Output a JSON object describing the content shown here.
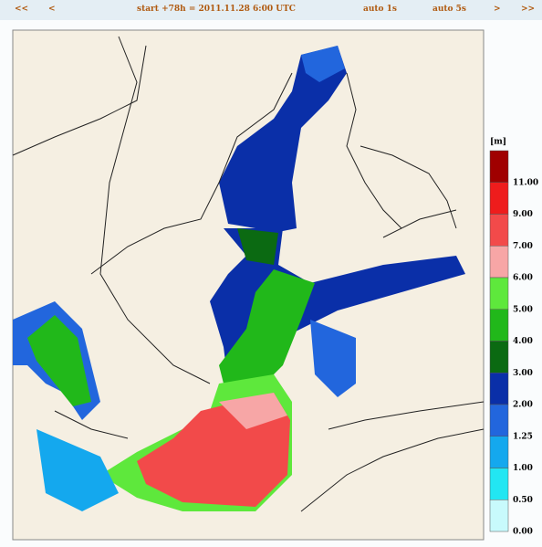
{
  "nav": {
    "first": "<<",
    "prev": "<",
    "title": "start +78h  =  2011.11.28 6:00 UTC",
    "auto1": "auto 1s",
    "auto5": "auto 5s",
    "next": ">",
    "last": ">>"
  },
  "legend": {
    "unit": "[m]",
    "levels": [
      {
        "label": "11.00",
        "color": "#a00000"
      },
      {
        "label": "9.00",
        "color": "#ee1c1c"
      },
      {
        "label": "7.00",
        "color": "#f24a4a"
      },
      {
        "label": "6.00",
        "color": "#f7a6a6"
      },
      {
        "label": "5.00",
        "color": "#5ee83c"
      },
      {
        "label": "4.00",
        "color": "#21b81a"
      },
      {
        "label": "3.00",
        "color": "#0b6a12"
      },
      {
        "label": "2.00",
        "color": "#0a2fa8"
      },
      {
        "label": "1.25",
        "color": "#2266dd"
      },
      {
        "label": "1.00",
        "color": "#14a8ee"
      },
      {
        "label": "0.50",
        "color": "#22e6f2"
      },
      {
        "label": "0.00",
        "color": "#c8fafc"
      }
    ]
  }
}
